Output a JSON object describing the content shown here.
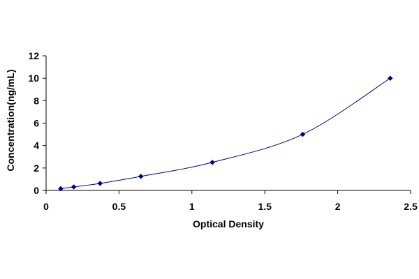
{
  "chart_data": {
    "type": "scatter",
    "title": "",
    "xlabel": "Optical Density",
    "ylabel": "Concentration(ng/mL)",
    "xlim": [
      0,
      2.5
    ],
    "ylim": [
      0,
      12
    ],
    "x_ticks": [
      "0",
      "0.5",
      "1",
      "1.5",
      "2",
      "2.5"
    ],
    "y_ticks": [
      "0",
      "2",
      "4",
      "6",
      "8",
      "10",
      "12"
    ],
    "grid": false,
    "legend": "none",
    "series": [
      {
        "x": [
          0.1,
          0.19,
          0.37,
          0.65,
          1.14,
          1.76,
          2.36
        ],
        "y": [
          0.156,
          0.312,
          0.625,
          1.25,
          2.5,
          5,
          10
        ],
        "marker": "diamond",
        "trendline": "smooth"
      }
    ],
    "colors": {
      "marker": "#000080",
      "line": "#000080",
      "axis": "#000000"
    }
  }
}
